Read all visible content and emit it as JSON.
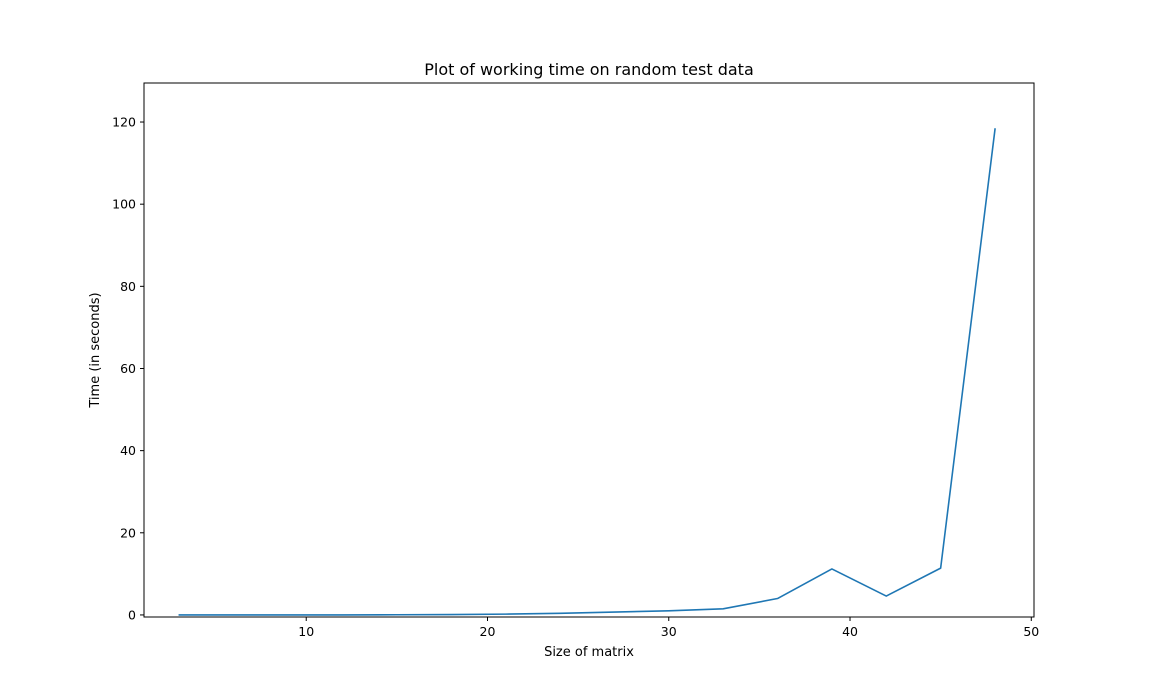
{
  "chart_data": {
    "type": "line",
    "title": "Plot of working time on random test data",
    "xlabel": "Size of matrix",
    "ylabel": "Time (in seconds)",
    "xlim": [
      1.05,
      50.15
    ],
    "ylim": [
      -0.5,
      129.5
    ],
    "xticks": [
      10,
      20,
      30,
      40,
      50
    ],
    "yticks": [
      0,
      20,
      40,
      60,
      80,
      100,
      120
    ],
    "grid": false,
    "series": [
      {
        "color": "#1f77b4",
        "x": [
          3,
          6,
          9,
          12,
          15,
          18,
          21,
          24,
          27,
          30,
          33,
          36,
          39,
          42,
          45,
          48
        ],
        "y": [
          0.0,
          0.0,
          0.0,
          0.0,
          0.05,
          0.1,
          0.2,
          0.4,
          0.7,
          1.0,
          1.5,
          4.0,
          11.2,
          4.6,
          11.4,
          118.3
        ]
      }
    ]
  }
}
